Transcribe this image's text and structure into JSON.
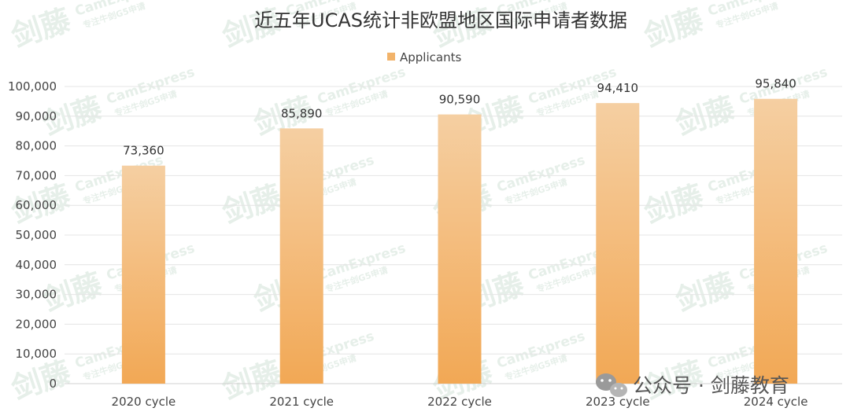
{
  "chart_data": {
    "type": "bar",
    "title": "近五年UCAS统计非欧盟地区国际申请者数据",
    "legend": "Applicants",
    "legend_position": "top-center",
    "categories": [
      "2020 cycle",
      "2021 cycle",
      "2022 cycle",
      "2023 cycle",
      "2024 cycle"
    ],
    "series": [
      {
        "name": "Applicants",
        "values": [
          73360,
          85890,
          90590,
          94410,
          95840
        ]
      }
    ],
    "data_labels": [
      "73,360",
      "85,890",
      "90,590",
      "94,410",
      "95,840"
    ],
    "ylim": [
      0,
      100000
    ],
    "yticks": [
      "0",
      "10,000",
      "20,000",
      "30,000",
      "40,000",
      "50,000",
      "60,000",
      "70,000",
      "80,000",
      "90,000",
      "100,000"
    ],
    "grid": true,
    "colors": {
      "bar_top": "#f5cfa2",
      "bar_bottom": "#f2a855",
      "legend_swatch": "#f2b36a",
      "gridline": "#e4e4e4"
    }
  },
  "watermark": {
    "logo_text": "剑藤",
    "brand": "CamExpress",
    "slogan": "专注牛剑G5申请"
  },
  "footer": {
    "icon": "wechat-icon",
    "text": "公众号 · 剑藤教育"
  }
}
